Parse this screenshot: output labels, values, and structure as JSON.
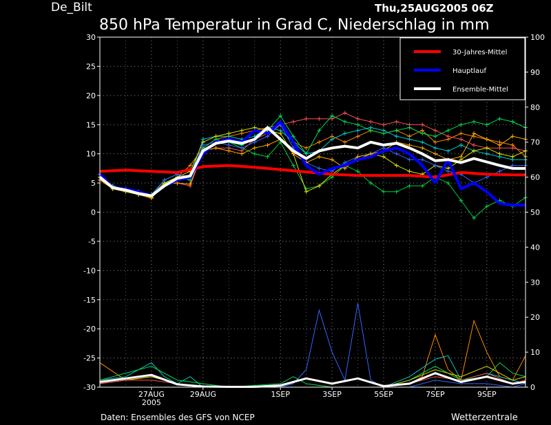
{
  "station": "De_Bilt",
  "run_time": "Thu,25AUG2005 06Z",
  "footer_left": "Daten: Ensembles des GFS von NCEP",
  "footer_right": "Wetterzentrale",
  "chart_data": {
    "type": "line",
    "title": "850 hPa Temperatur in Grad C, Niederschlag in mm",
    "x_tick_labels": [
      {
        "label": "27AUG",
        "sub": "2005",
        "day": 2
      },
      {
        "label": "29AUG",
        "sub": "",
        "day": 4
      },
      {
        "label": "1SEP",
        "sub": "",
        "day": 7
      },
      {
        "label": "3SEP",
        "sub": "",
        "day": 9
      },
      {
        "label": "5SEP",
        "sub": "",
        "day": 11
      },
      {
        "label": "7SEP",
        "sub": "",
        "day": 13
      },
      {
        "label": "9SEP",
        "sub": "",
        "day": 15
      }
    ],
    "xlim": [
      0,
      16.5
    ],
    "y_left": {
      "label": "",
      "ticks": [
        30,
        25,
        20,
        15,
        10,
        5,
        0,
        -5,
        -10,
        -15,
        -20,
        -25,
        -30
      ],
      "lim": [
        -30,
        30
      ]
    },
    "y_right": {
      "label": "",
      "ticks": [
        100,
        90,
        80,
        70,
        60,
        50,
        40,
        30,
        20,
        10,
        0
      ],
      "lim": [
        0,
        100
      ]
    },
    "grid": true,
    "legend_position": "top-right",
    "legend": [
      {
        "name": "30-Jahres-Mittel",
        "color": "#ff0000"
      },
      {
        "name": "Hauptlauf",
        "color": "#0000ff"
      },
      {
        "name": "Ensemble-Mittel",
        "color": "#ffffff"
      }
    ],
    "series": [
      {
        "name": "30-Jahres-Mittel",
        "color": "#ff0000",
        "width": 4,
        "x": [
          0,
          1,
          2,
          3,
          4,
          5,
          6,
          7,
          8,
          9,
          10,
          11,
          12,
          13,
          14,
          15,
          16,
          16.5
        ],
        "y": [
          7.0,
          7.2,
          7.0,
          6.8,
          7.8,
          8.0,
          7.7,
          7.3,
          6.9,
          6.5,
          6.3,
          6.3,
          6.3,
          6.0,
          6.8,
          6.5,
          6.4,
          6.4
        ]
      },
      {
        "name": "Hauptlauf",
        "color": "#0000ff",
        "width": 4,
        "x": [
          0,
          0.5,
          1,
          1.5,
          2,
          2.5,
          3,
          3.5,
          4,
          4.5,
          5,
          5.5,
          6,
          6.5,
          7,
          7.5,
          8,
          8.5,
          9,
          9.5,
          10,
          10.5,
          11,
          11.5,
          12,
          12.5,
          13
        ],
        "y": [
          6.5,
          4.2,
          4.0,
          3.5,
          2.8,
          4.5,
          5.5,
          6.0,
          10.0,
          12.0,
          12.5,
          12.0,
          14.0,
          13.5,
          15.5,
          12.0,
          8.0,
          6.5,
          7.5,
          8.0,
          9.0,
          9.5,
          10.5,
          11.0,
          10.0,
          8.0,
          5.0
        ]
      },
      {
        "name": "Hauptlauf-2",
        "color": "#0000ff",
        "width": 4,
        "x": [
          13,
          13.5,
          14,
          14.5,
          15,
          15.5,
          16,
          16.5
        ],
        "y": [
          5.0,
          9.0,
          4.0,
          5.0,
          3.5,
          1.5,
          1.2,
          1.2
        ]
      },
      {
        "name": "Ensemble-Mittel",
        "color": "#ffffff",
        "width": 4,
        "x": [
          0,
          0.5,
          1,
          1.5,
          2,
          2.5,
          3,
          3.5,
          4,
          4.5,
          5,
          5.5,
          6,
          6.5,
          7,
          7.5,
          8,
          8.5,
          9,
          9.5,
          10,
          10.5,
          11,
          11.5,
          12,
          12.5,
          13,
          13.5,
          14,
          14.5,
          15,
          15.5,
          16,
          16.5
        ],
        "y": [
          6.0,
          4.2,
          3.8,
          3.2,
          2.8,
          4.5,
          5.8,
          6.2,
          10.5,
          11.8,
          12.2,
          11.8,
          12.5,
          14.5,
          12.5,
          10.5,
          9.2,
          10.5,
          11.0,
          11.3,
          11.0,
          12.0,
          11.5,
          11.8,
          11.0,
          10.0,
          8.8,
          9.0,
          8.5,
          9.2,
          8.6,
          8.0,
          7.5,
          7.5
        ]
      },
      {
        "name": "ens-orange-1",
        "color": "#ff8800",
        "width": 1,
        "markers": true,
        "x": [
          0,
          0.5,
          1,
          1.5,
          2,
          2.5,
          3,
          3.5,
          4,
          4.5,
          5,
          5.5,
          6,
          6.5,
          7,
          7.5,
          8,
          8.5,
          9,
          9.5,
          10,
          10.5,
          11,
          11.5,
          12,
          12.5,
          13,
          13.5,
          14,
          14.5,
          15,
          15.5,
          16,
          16.5
        ],
        "y": [
          6.0,
          4.0,
          3.8,
          3.0,
          2.5,
          4.5,
          6.0,
          8.0,
          11.0,
          12.5,
          13.0,
          13.5,
          14.0,
          14.5,
          15.0,
          12.0,
          11.0,
          12.0,
          13.0,
          12.0,
          13.0,
          14.0,
          13.5,
          14.0,
          13.0,
          14.0,
          12.0,
          12.5,
          13.5,
          13.0,
          12.5,
          12.0,
          11.5,
          9.5
        ]
      },
      {
        "name": "ens-red-1",
        "color": "#ff5050",
        "width": 1,
        "markers": true,
        "x": [
          0,
          0.5,
          1,
          1.5,
          2,
          2.5,
          3,
          3.5,
          4,
          4.5,
          5,
          5.5,
          6,
          6.5,
          7,
          7.5,
          8,
          8.5,
          9,
          9.5,
          10,
          10.5,
          11,
          11.5,
          12,
          12.5,
          13,
          13.5,
          14,
          14.5,
          15,
          15.5,
          16,
          16.5
        ],
        "y": [
          5.5,
          4.5,
          4.0,
          3.2,
          3.0,
          5.0,
          5.0,
          4.5,
          10.5,
          11.0,
          11.0,
          10.5,
          12.5,
          13.5,
          15.0,
          15.5,
          16.0,
          16.0,
          16.0,
          17.0,
          16.0,
          15.5,
          15.0,
          15.5,
          15.0,
          15.0,
          14.0,
          13.0,
          12.5,
          11.5,
          11.0,
          11.0,
          11.0,
          10.5
        ]
      },
      {
        "name": "ens-green-1",
        "color": "#00dd55",
        "width": 1,
        "markers": true,
        "x": [
          0,
          0.5,
          1,
          1.5,
          2,
          2.5,
          3,
          3.5,
          4,
          4.5,
          5,
          5.5,
          6,
          6.5,
          7,
          7.5,
          8,
          8.5,
          9,
          9.5,
          10,
          10.5,
          11,
          11.5,
          12,
          12.5,
          13,
          13.5,
          14,
          14.5,
          15,
          15.5,
          16,
          16.5
        ],
        "y": [
          6.5,
          4.2,
          3.8,
          3.5,
          2.8,
          5.0,
          6.0,
          5.5,
          11.0,
          12.5,
          12.0,
          11.5,
          12.5,
          14.0,
          16.5,
          13.0,
          10.0,
          14.0,
          16.5,
          15.5,
          15.0,
          14.0,
          13.5,
          14.0,
          14.5,
          13.5,
          13.0,
          14.0,
          15.0,
          15.5,
          15.0,
          16.0,
          15.5,
          14.5
        ]
      },
      {
        "name": "ens-green-2",
        "color": "#00cc44",
        "width": 1,
        "markers": true,
        "x": [
          0,
          0.5,
          1,
          1.5,
          2,
          2.5,
          3,
          3.5,
          4,
          4.5,
          5,
          5.5,
          6,
          6.5,
          7,
          7.5,
          8,
          8.5,
          9,
          9.5,
          10,
          10.5,
          11,
          11.5,
          12,
          12.5,
          13,
          13.5,
          14,
          14.5,
          15,
          15.5,
          16,
          16.5
        ],
        "y": [
          6.0,
          4.0,
          3.5,
          3.0,
          2.5,
          5.0,
          5.5,
          6.0,
          11.0,
          12.5,
          12.0,
          11.0,
          10.0,
          9.5,
          12.0,
          8.0,
          4.0,
          4.5,
          6.0,
          8.0,
          7.0,
          5.0,
          3.5,
          3.5,
          4.5,
          4.5,
          6.0,
          5.0,
          2.0,
          -1.0,
          1.0,
          2.0,
          1.0,
          2.5
        ]
      },
      {
        "name": "ens-cyan-1",
        "color": "#00cccc",
        "width": 1,
        "markers": true,
        "x": [
          0,
          0.5,
          1,
          1.5,
          2,
          2.5,
          3,
          3.5,
          4,
          4.5,
          5,
          5.5,
          6,
          6.5,
          7,
          7.5,
          8,
          8.5,
          9,
          9.5,
          10,
          10.5,
          11,
          11.5,
          12,
          12.5,
          13,
          13.5,
          14,
          14.5,
          15,
          15.5,
          16,
          16.5
        ],
        "y": [
          6.5,
          4.5,
          4.0,
          3.5,
          3.0,
          5.5,
          6.5,
          6.0,
          12.5,
          13.0,
          13.0,
          12.5,
          13.0,
          14.5,
          14.0,
          12.0,
          10.0,
          10.5,
          12.5,
          13.5,
          14.0,
          14.5,
          14.0,
          13.0,
          12.5,
          12.0,
          11.0,
          10.5,
          11.5,
          10.5,
          10.0,
          9.5,
          9.0,
          9.0
        ]
      },
      {
        "name": "ens-yellow-1",
        "color": "#dddd00",
        "width": 1,
        "markers": true,
        "x": [
          0,
          0.5,
          1,
          1.5,
          2,
          2.5,
          3,
          3.5,
          4,
          4.5,
          5,
          5.5,
          6,
          6.5,
          7,
          7.5,
          8,
          8.5,
          9,
          9.5,
          10,
          10.5,
          11,
          11.5,
          12,
          12.5,
          13,
          13.5,
          14,
          14.5,
          15,
          15.5,
          16,
          16.5
        ],
        "y": [
          6.0,
          4.0,
          3.5,
          3.0,
          2.5,
          5.0,
          6.0,
          7.0,
          12.0,
          13.0,
          13.5,
          14.0,
          14.5,
          14.0,
          13.5,
          10.0,
          3.5,
          4.5,
          6.5,
          8.0,
          9.0,
          10.0,
          9.5,
          8.0,
          7.0,
          6.5,
          8.0,
          7.5,
          9.0,
          10.5,
          11.0,
          10.0,
          9.5,
          10.5
        ]
      },
      {
        "name": "ens-blue-1",
        "color": "#3366ff",
        "width": 1,
        "markers": true,
        "x": [
          0,
          0.5,
          1,
          1.5,
          2,
          2.5,
          3,
          3.5,
          4,
          4.5,
          5,
          5.5,
          6,
          6.5,
          7,
          7.5,
          8,
          8.5,
          9,
          9.5,
          10,
          10.5,
          11,
          11.5,
          12,
          12.5,
          13,
          13.5,
          14,
          14.5,
          15,
          15.5,
          16,
          16.5
        ],
        "y": [
          6.5,
          4.2,
          3.8,
          3.2,
          2.8,
          5.5,
          6.5,
          6.0,
          11.5,
          12.0,
          11.5,
          11.0,
          12.0,
          13.0,
          15.0,
          11.0,
          8.5,
          7.5,
          7.0,
          8.5,
          9.5,
          10.0,
          11.0,
          10.0,
          9.0,
          9.0,
          8.0,
          7.0,
          6.5,
          5.0,
          6.0,
          7.0,
          8.0,
          8.0
        ]
      },
      {
        "name": "ens-orange-2",
        "color": "#ffaa00",
        "width": 1,
        "markers": true,
        "x": [
          0,
          0.5,
          1,
          1.5,
          2,
          2.5,
          3,
          3.5,
          4,
          4.5,
          5,
          5.5,
          6,
          6.5,
          7,
          7.5,
          8,
          8.5,
          9,
          9.5,
          10,
          10.5,
          11,
          11.5,
          12,
          12.5,
          13,
          13.5,
          14,
          14.5,
          15,
          15.5,
          16,
          16.5
        ],
        "y": [
          5.5,
          4.0,
          3.6,
          3.0,
          2.4,
          4.8,
          5.0,
          4.8,
          10.5,
          11.0,
          10.5,
          10.0,
          11.0,
          11.5,
          12.5,
          10.0,
          8.5,
          9.5,
          9.0,
          7.5,
          9.5,
          10.0,
          10.5,
          12.0,
          11.5,
          11.0,
          10.0,
          9.0,
          9.5,
          13.5,
          12.5,
          11.5,
          13.0,
          12.5
        ]
      }
    ],
    "precip_series": [
      {
        "name": "prec-blue",
        "color": "#3366ff",
        "x": [
          0,
          1,
          2,
          3,
          4,
          5,
          6,
          7,
          7.5,
          8,
          8.5,
          9,
          9.5,
          10,
          10.5,
          11,
          12,
          13,
          14,
          15,
          16,
          16.5
        ],
        "y": [
          1,
          2,
          3,
          1,
          0,
          0,
          0,
          0,
          1,
          5,
          22,
          10,
          2,
          24,
          2,
          0,
          0,
          2,
          1,
          1,
          0,
          1
        ]
      },
      {
        "name": "prec-orange",
        "color": "#ff8800",
        "x": [
          0,
          1,
          2,
          3,
          4,
          5,
          7,
          9,
          11,
          12,
          12.5,
          13,
          13.5,
          14,
          14.5,
          15,
          15.5,
          16,
          16.5
        ],
        "y": [
          7,
          2,
          3,
          1,
          0,
          0,
          0,
          0,
          0,
          1,
          3,
          15,
          5,
          2,
          19,
          10,
          3,
          2,
          9
        ]
      },
      {
        "name": "prec-cyan",
        "color": "#00cccc",
        "x": [
          0,
          1,
          2,
          2.5,
          3,
          3.5,
          4,
          5,
          7,
          9,
          11,
          12,
          13,
          13.5,
          14,
          15,
          16,
          16.5
        ],
        "y": [
          2,
          3,
          7,
          3,
          1,
          3,
          0,
          0,
          0,
          0,
          0,
          3,
          8,
          9,
          2,
          4,
          2,
          1
        ]
      },
      {
        "name": "prec-green",
        "color": "#00dd55",
        "x": [
          0,
          1,
          2,
          3,
          4,
          5,
          7,
          7.5,
          8,
          9,
          11,
          12,
          13,
          14,
          15,
          15.5,
          16,
          16.5
        ],
        "y": [
          2,
          4,
          6,
          2,
          1,
          0,
          1,
          3,
          1,
          0,
          0,
          2,
          6,
          2,
          3,
          7,
          4,
          3
        ]
      },
      {
        "name": "prec-yellow",
        "color": "#dddd00",
        "x": [
          0,
          1,
          2,
          3,
          4,
          5,
          7,
          9,
          11,
          12,
          13,
          14,
          15,
          16,
          16.5
        ],
        "y": [
          1,
          2,
          3,
          1,
          0,
          0,
          0,
          0,
          0,
          2,
          5,
          3,
          6,
          2,
          3
        ]
      },
      {
        "name": "prec-red",
        "color": "#ff5050",
        "x": [
          0,
          1,
          2,
          3,
          4,
          5,
          7,
          9,
          11,
          12,
          13,
          14,
          15,
          16,
          16.5
        ],
        "y": [
          1,
          2,
          2,
          1,
          0,
          0,
          0,
          0,
          0,
          1,
          3,
          2,
          4,
          1,
          2
        ]
      },
      {
        "name": "prec-white",
        "color": "#ffffff",
        "width": 3,
        "x": [
          0,
          1,
          2,
          3,
          4,
          5,
          6,
          7,
          8,
          9,
          10,
          11,
          12,
          13,
          14,
          15,
          16,
          16.5
        ],
        "y": [
          1.5,
          2.5,
          3.5,
          0.8,
          0.2,
          0.1,
          0.1,
          0.5,
          2.5,
          1.0,
          2.5,
          0.3,
          1.0,
          4.0,
          1.5,
          3.0,
          1.0,
          1.5
        ]
      }
    ]
  }
}
